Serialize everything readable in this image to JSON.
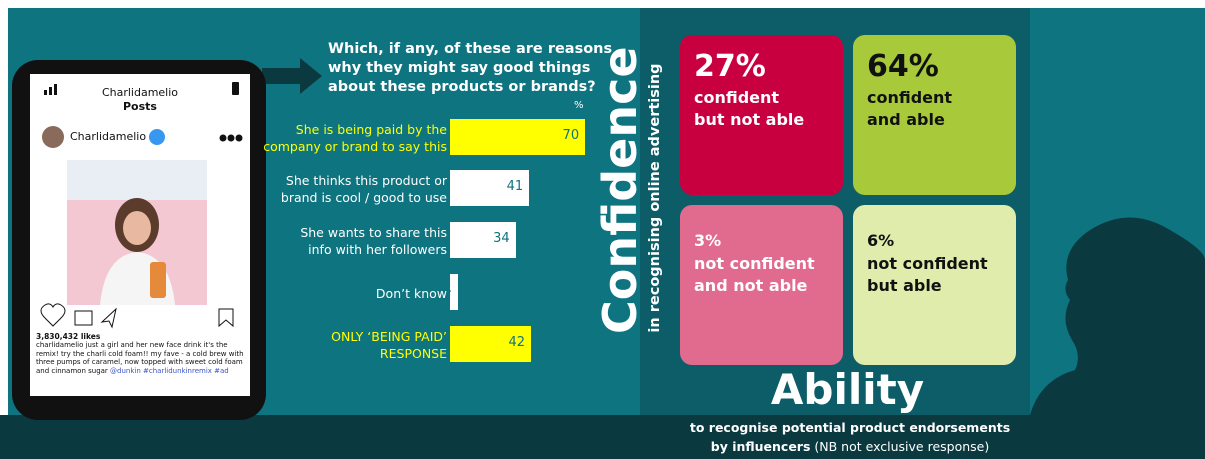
{
  "phone": {
    "username_header": "Charlidamelio",
    "tab": "Posts",
    "account": "Charlidamelio",
    "likes": "3,830,432 likes",
    "caption": "charlidamelio just a girl and her new face drink it's the remix! try the charli cold foam!! my fave - a cold brew with three pumps of caramel, now topped with sweet cold foam and cinnamon sugar",
    "tags": "@dunkin #charlidunkinremix #ad"
  },
  "chart_data": {
    "type": "bar",
    "title": "Which, if any, of these are reasons\nwhy they might say good things\nabout these products or brands?",
    "unit": "%",
    "categories": [
      "She is being paid by the\ncompany or brand to say this",
      "She thinks this product or\nbrand is cool / good to use",
      "She wants to share this\ninfo with her followers",
      "Don’t know",
      "ONLY ‘BEING PAID’\nRESPONSE"
    ],
    "values": [
      70,
      41,
      34,
      4,
      42
    ],
    "colors": [
      "#ffff00",
      "#ffffff",
      "#ffffff",
      "#ffffff",
      "#ffff00"
    ],
    "value_color": "#0e7480"
  },
  "quadrant": {
    "y_title": "Confidence",
    "y_subtitle": "in recognising online advertising",
    "x_title": "Ability",
    "cells": [
      {
        "value": 27,
        "value_label": "27%",
        "label": "confident\nbut not able",
        "color": "#c8003f",
        "text_color": "#ffffff"
      },
      {
        "value": 64,
        "value_label": "64%",
        "label": "confident\nand able",
        "color": "#a8c93a",
        "text_color": "#111111"
      },
      {
        "value": 3,
        "value_label": "3%",
        "label": "not confident\nand not able",
        "color": "#e06b8f",
        "text_color": "#ffffff"
      },
      {
        "value": 6,
        "value_label": "6%",
        "label": "not confident\nbut able",
        "color": "#e0ecac",
        "text_color": "#111111"
      }
    ]
  },
  "footer": {
    "line1": "to recognise potential product endorsements",
    "line2_bold": "by influencers",
    "line2_rest": " (NB not exclusive response)"
  }
}
